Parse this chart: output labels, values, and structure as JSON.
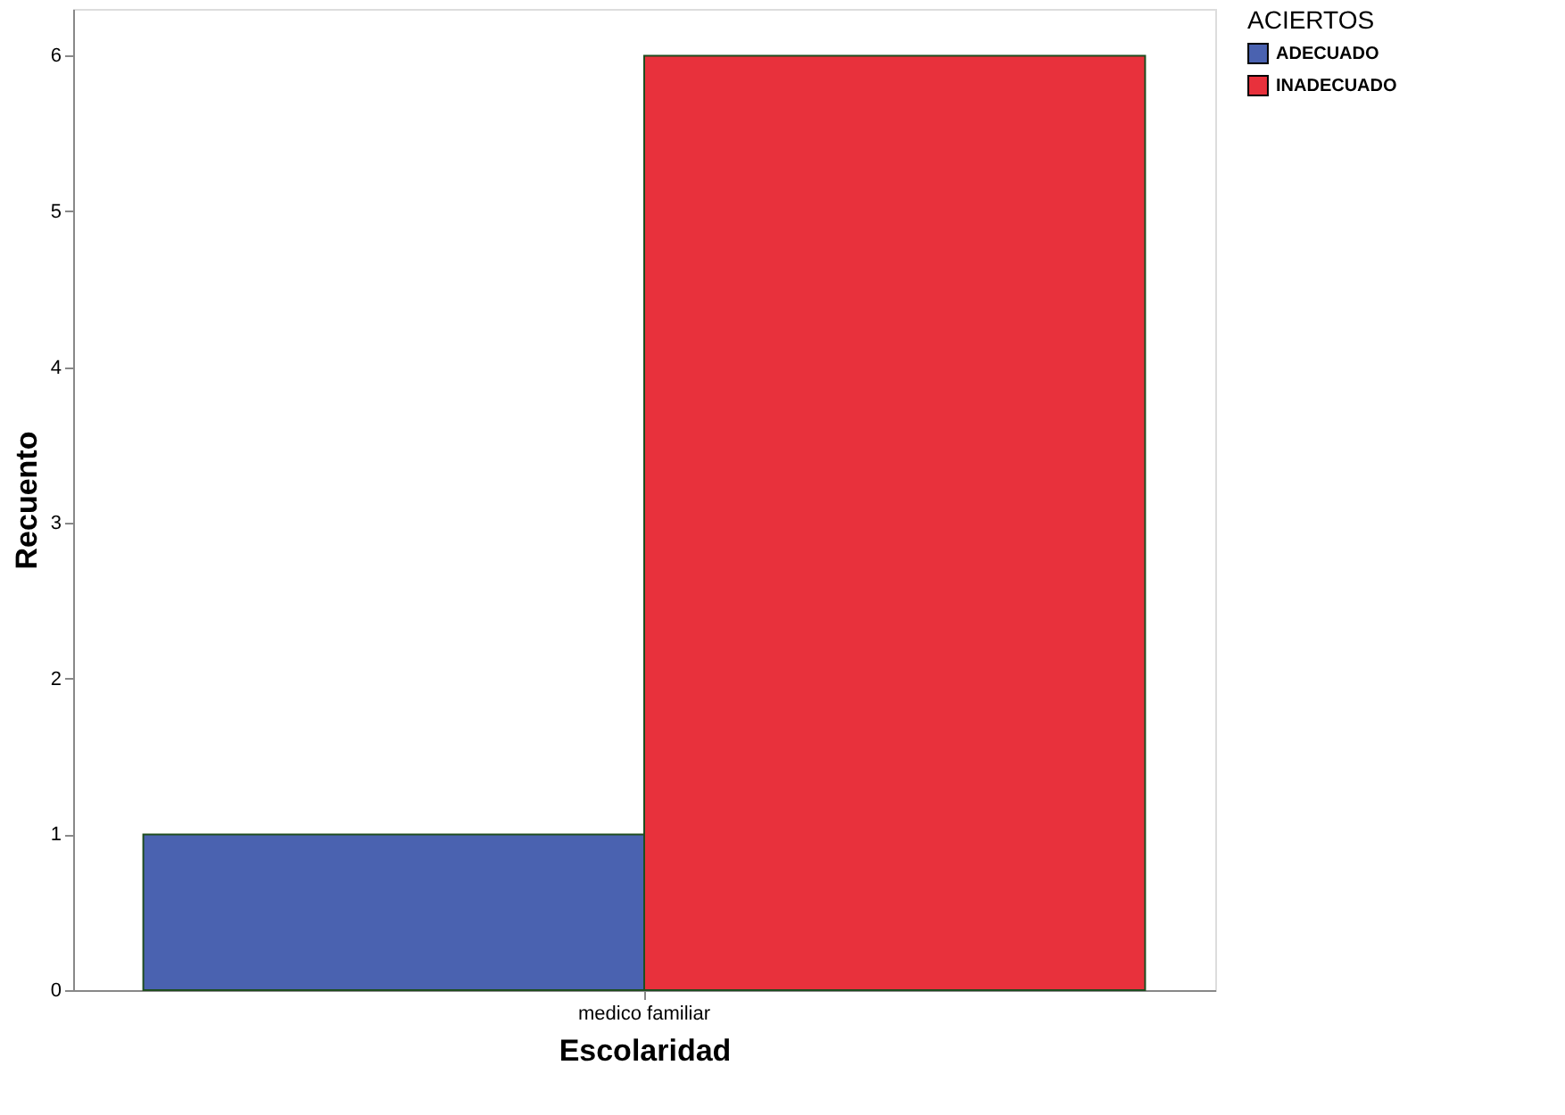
{
  "chart_data": {
    "type": "bar",
    "xlabel": "Escolaridad",
    "ylabel": "Recuento",
    "legend_title": "ACIERTOS",
    "categories": [
      "medico familiar"
    ],
    "series": [
      {
        "name": "ADECUADO",
        "color": "#4a62b0",
        "values": [
          1
        ]
      },
      {
        "name": "INADECUADO",
        "color": "#e8313c",
        "values": [
          6
        ]
      }
    ],
    "ylim": [
      0,
      6.3
    ],
    "yticks": [
      0,
      1,
      2,
      3,
      4,
      5,
      6
    ],
    "grid": false,
    "legend": "top right"
  }
}
